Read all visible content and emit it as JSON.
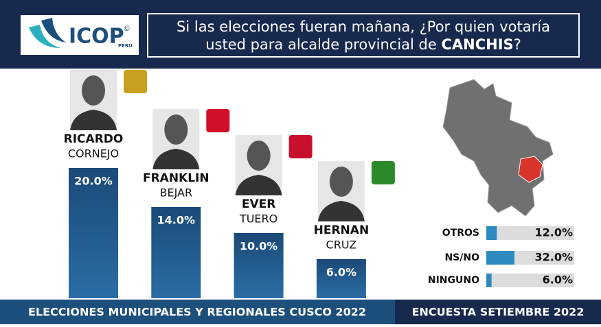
{
  "header": {
    "logo": "ICOP",
    "logo_mark": "©",
    "logo_sub": "PERÚ",
    "question_line1": "Si las elecciones fueran mañana, ¿Por quien votaría",
    "question_line2": "usted para alcalde provincial de",
    "question_bold": "CANCHIS",
    "question_end": "?"
  },
  "chart_data": [
    {
      "type": "bar",
      "categories": [
        "RICARDO",
        "FRANKLIN",
        "EVER",
        "HERNAN"
      ],
      "surnames": [
        "CORNEJO",
        "BEJAR",
        "TUERO",
        "CRUZ"
      ],
      "values": [
        20,
        14,
        10,
        6
      ],
      "value_labels": [
        "20.0%",
        "14.0%",
        "10.0%",
        "6.0%"
      ],
      "color": "#1f4e79"
    },
    {
      "type": "hbar",
      "categories": [
        "OTROS",
        "NS/NO",
        "NINGUNO"
      ],
      "values": [
        12,
        32,
        6
      ],
      "value_labels": [
        "12.0%",
        "32.0%",
        "6.0%"
      ],
      "color": "#2e8bc0"
    }
  ],
  "footer": {
    "left": "ELECCIONES MUNICIPALES Y REGIONALES CUSCO 2022",
    "right": "ENCUESTA SETIEMBRE 2022"
  }
}
